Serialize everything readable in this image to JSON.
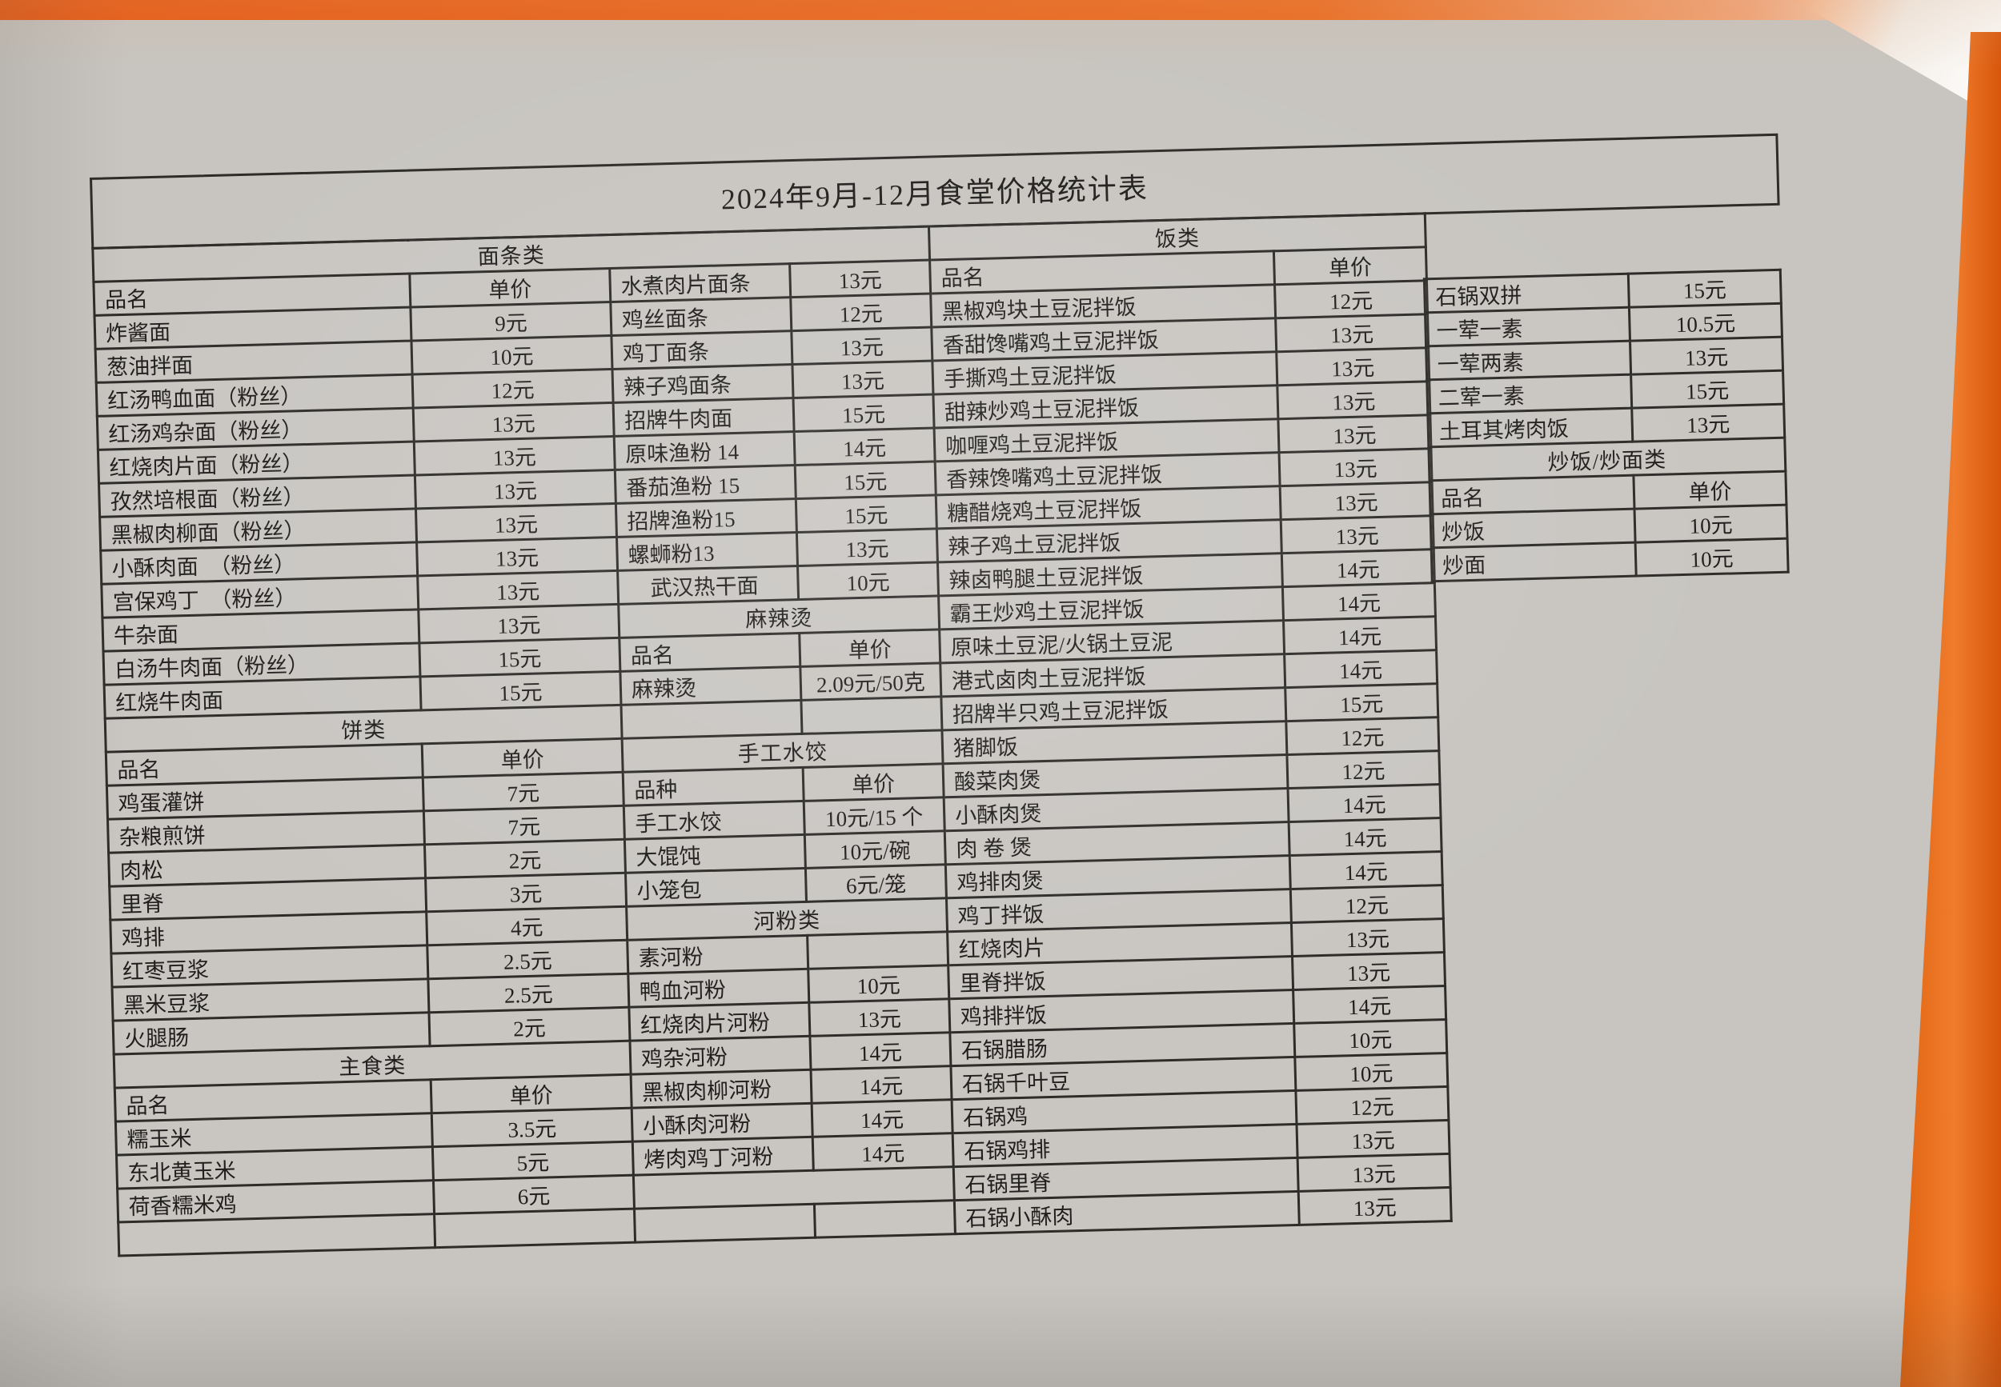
{
  "title": "2024年9月-12月食堂价格统计表",
  "palette": {
    "paper": "#c8c5c0",
    "line": "#2e2c29",
    "ink": "#211f1d",
    "accent_orange": "#e8560e"
  },
  "main_table": {
    "rows": [
      {
        "cells": [
          {
            "text": "面条类",
            "kind": "header",
            "span": 4
          },
          {
            "text": "饭类",
            "kind": "header",
            "span": 2
          }
        ]
      },
      {
        "cells": [
          {
            "text": "品名",
            "kind": "colname"
          },
          {
            "text": "单价",
            "kind": "colprice"
          },
          {
            "text": "水煮肉片面条",
            "kind": "name"
          },
          {
            "text": "13元",
            "kind": "price"
          },
          {
            "text": "品名",
            "kind": "colname"
          },
          {
            "text": "单价",
            "kind": "colprice"
          }
        ]
      },
      {
        "cells": [
          {
            "text": "炸酱面",
            "kind": "name"
          },
          {
            "text": "9元",
            "kind": "price"
          },
          {
            "text": "鸡丝面条",
            "kind": "name"
          },
          {
            "text": "12元",
            "kind": "price"
          },
          {
            "text": "黑椒鸡块土豆泥拌饭",
            "kind": "name"
          },
          {
            "text": "12元",
            "kind": "price"
          }
        ]
      },
      {
        "cells": [
          {
            "text": "葱油拌面",
            "kind": "name"
          },
          {
            "text": "10元",
            "kind": "price"
          },
          {
            "text": "鸡丁面条",
            "kind": "name"
          },
          {
            "text": "13元",
            "kind": "price"
          },
          {
            "text": "香甜馋嘴鸡土豆泥拌饭",
            "kind": "name"
          },
          {
            "text": "13元",
            "kind": "price"
          }
        ]
      },
      {
        "cells": [
          {
            "text": "红汤鸭血面（粉丝）",
            "kind": "name"
          },
          {
            "text": "12元",
            "kind": "price"
          },
          {
            "text": "辣子鸡面条",
            "kind": "name"
          },
          {
            "text": "13元",
            "kind": "price"
          },
          {
            "text": "手撕鸡土豆泥拌饭",
            "kind": "name"
          },
          {
            "text": "13元",
            "kind": "price"
          }
        ]
      },
      {
        "cells": [
          {
            "text": "红汤鸡杂面（粉丝）",
            "kind": "name"
          },
          {
            "text": "13元",
            "kind": "price"
          },
          {
            "text": "招牌牛肉面",
            "kind": "name"
          },
          {
            "text": "15元",
            "kind": "price"
          },
          {
            "text": "甜辣炒鸡土豆泥拌饭",
            "kind": "name"
          },
          {
            "text": "13元",
            "kind": "price"
          }
        ]
      },
      {
        "cells": [
          {
            "text": "红烧肉片面（粉丝）",
            "kind": "name"
          },
          {
            "text": "13元",
            "kind": "price"
          },
          {
            "text": "原味渔粉 14",
            "kind": "name"
          },
          {
            "text": "14元",
            "kind": "price"
          },
          {
            "text": "咖喱鸡土豆泥拌饭",
            "kind": "name"
          },
          {
            "text": "13元",
            "kind": "price"
          }
        ]
      },
      {
        "cells": [
          {
            "text": "孜然培根面（粉丝）",
            "kind": "name"
          },
          {
            "text": "13元",
            "kind": "price"
          },
          {
            "text": "番茄渔粉 15",
            "kind": "name"
          },
          {
            "text": "15元",
            "kind": "price"
          },
          {
            "text": "香辣馋嘴鸡土豆泥拌饭",
            "kind": "name"
          },
          {
            "text": "13元",
            "kind": "price"
          }
        ]
      },
      {
        "cells": [
          {
            "text": "黑椒肉柳面（粉丝）",
            "kind": "name"
          },
          {
            "text": "13元",
            "kind": "price"
          },
          {
            "text": "招牌渔粉15",
            "kind": "name"
          },
          {
            "text": "15元",
            "kind": "price"
          },
          {
            "text": "糖醋烧鸡土豆泥拌饭",
            "kind": "name"
          },
          {
            "text": "13元",
            "kind": "price"
          }
        ]
      },
      {
        "cells": [
          {
            "text": "小酥肉面　（粉丝）",
            "kind": "name"
          },
          {
            "text": "13元",
            "kind": "price"
          },
          {
            "text": "螺蛳粉13",
            "kind": "name"
          },
          {
            "text": "13元",
            "kind": "price"
          },
          {
            "text": "辣子鸡土豆泥拌饭",
            "kind": "name"
          },
          {
            "text": "13元",
            "kind": "price"
          }
        ]
      },
      {
        "cells": [
          {
            "text": "宫保鸡丁　（粉丝）",
            "kind": "name"
          },
          {
            "text": "13元",
            "kind": "price"
          },
          {
            "text": "　武汉热干面",
            "kind": "name"
          },
          {
            "text": "10元",
            "kind": "price"
          },
          {
            "text": "辣卤鸭腿土豆泥拌饭",
            "kind": "name"
          },
          {
            "text": "14元",
            "kind": "price"
          }
        ]
      },
      {
        "cells": [
          {
            "text": "牛杂面",
            "kind": "name"
          },
          {
            "text": "13元",
            "kind": "price"
          },
          {
            "text": "麻辣烫",
            "kind": "header",
            "span": 2
          },
          {
            "text": "霸王炒鸡土豆泥拌饭",
            "kind": "name"
          },
          {
            "text": "14元",
            "kind": "price"
          }
        ]
      },
      {
        "cells": [
          {
            "text": "白汤牛肉面（粉丝）",
            "kind": "name"
          },
          {
            "text": "15元",
            "kind": "price"
          },
          {
            "text": "品名",
            "kind": "colname"
          },
          {
            "text": "单价",
            "kind": "colprice"
          },
          {
            "text": "原味土豆泥/火锅土豆泥",
            "kind": "name"
          },
          {
            "text": "14元",
            "kind": "price"
          }
        ]
      },
      {
        "cells": [
          {
            "text": "红烧牛肉面",
            "kind": "name"
          },
          {
            "text": "15元",
            "kind": "price"
          },
          {
            "text": "麻辣烫",
            "kind": "name"
          },
          {
            "text": "2.09元/50克",
            "kind": "price"
          },
          {
            "text": "港式卤肉土豆泥拌饭",
            "kind": "name"
          },
          {
            "text": "14元",
            "kind": "price"
          }
        ]
      },
      {
        "cells": [
          {
            "text": "饼类",
            "kind": "header",
            "span": 2
          },
          {
            "kind": "empty"
          },
          {
            "kind": "empty"
          },
          {
            "text": "招牌半只鸡土豆泥拌饭",
            "kind": "name"
          },
          {
            "text": "15元",
            "kind": "price"
          }
        ]
      },
      {
        "cells": [
          {
            "text": "品名",
            "kind": "colname"
          },
          {
            "text": "单价",
            "kind": "colprice"
          },
          {
            "text": "手工水饺",
            "kind": "header",
            "span": 2
          },
          {
            "text": "猪脚饭",
            "kind": "name"
          },
          {
            "text": "12元",
            "kind": "price"
          }
        ]
      },
      {
        "cells": [
          {
            "text": "鸡蛋灌饼",
            "kind": "name"
          },
          {
            "text": "7元",
            "kind": "price"
          },
          {
            "text": "品种",
            "kind": "colname"
          },
          {
            "text": "单价",
            "kind": "colprice"
          },
          {
            "text": "酸菜肉煲",
            "kind": "name"
          },
          {
            "text": "12元",
            "kind": "price"
          }
        ]
      },
      {
        "cells": [
          {
            "text": "杂粮煎饼",
            "kind": "name"
          },
          {
            "text": "7元",
            "kind": "price"
          },
          {
            "text": "手工水饺",
            "kind": "name"
          },
          {
            "text": "10元/15 个",
            "kind": "price"
          },
          {
            "text": "小酥肉煲",
            "kind": "name"
          },
          {
            "text": "14元",
            "kind": "price"
          }
        ]
      },
      {
        "cells": [
          {
            "text": "肉松",
            "kind": "name"
          },
          {
            "text": "2元",
            "kind": "price"
          },
          {
            "text": "大馄饨",
            "kind": "name"
          },
          {
            "text": "10元/碗",
            "kind": "price"
          },
          {
            "text": "肉 卷 煲",
            "kind": "name"
          },
          {
            "text": "14元",
            "kind": "price"
          }
        ]
      },
      {
        "cells": [
          {
            "text": "里脊",
            "kind": "name"
          },
          {
            "text": "3元",
            "kind": "price"
          },
          {
            "text": "小笼包",
            "kind": "name"
          },
          {
            "text": "6元/笼",
            "kind": "price"
          },
          {
            "text": "鸡排肉煲",
            "kind": "name"
          },
          {
            "text": "14元",
            "kind": "price"
          }
        ]
      },
      {
        "cells": [
          {
            "text": "鸡排",
            "kind": "name"
          },
          {
            "text": "4元",
            "kind": "price"
          },
          {
            "text": "河粉类",
            "kind": "header",
            "span": 2
          },
          {
            "text": "鸡丁拌饭",
            "kind": "name"
          },
          {
            "text": "12元",
            "kind": "price"
          }
        ]
      },
      {
        "cells": [
          {
            "text": "红枣豆浆",
            "kind": "name"
          },
          {
            "text": "2.5元",
            "kind": "price"
          },
          {
            "text": "素河粉",
            "kind": "name"
          },
          {
            "kind": "empty"
          },
          {
            "text": "红烧肉片",
            "kind": "name"
          },
          {
            "text": "13元",
            "kind": "price"
          }
        ]
      },
      {
        "cells": [
          {
            "text": "黑米豆浆",
            "kind": "name"
          },
          {
            "text": "2.5元",
            "kind": "price"
          },
          {
            "text": "鸭血河粉",
            "kind": "name"
          },
          {
            "text": "10元",
            "kind": "price"
          },
          {
            "text": "里脊拌饭",
            "kind": "name"
          },
          {
            "text": "13元",
            "kind": "price"
          }
        ]
      },
      {
        "cells": [
          {
            "text": "火腿肠",
            "kind": "name"
          },
          {
            "text": "2元",
            "kind": "price"
          },
          {
            "text": "红烧肉片河粉",
            "kind": "name"
          },
          {
            "text": "13元",
            "kind": "price"
          },
          {
            "text": "鸡排拌饭",
            "kind": "name"
          },
          {
            "text": "14元",
            "kind": "price"
          }
        ]
      },
      {
        "cells": [
          {
            "text": "主食类",
            "kind": "header",
            "span": 2
          },
          {
            "text": "鸡杂河粉",
            "kind": "name"
          },
          {
            "text": "14元",
            "kind": "price"
          },
          {
            "text": "石锅腊肠",
            "kind": "name"
          },
          {
            "text": "10元",
            "kind": "price"
          }
        ]
      },
      {
        "cells": [
          {
            "text": "品名",
            "kind": "colname"
          },
          {
            "text": "单价",
            "kind": "colprice"
          },
          {
            "text": "黑椒肉柳河粉",
            "kind": "name"
          },
          {
            "text": "14元",
            "kind": "price"
          },
          {
            "text": "石锅千叶豆",
            "kind": "name"
          },
          {
            "text": "10元",
            "kind": "price"
          }
        ]
      },
      {
        "cells": [
          {
            "text": "糯玉米",
            "kind": "name"
          },
          {
            "text": "3.5元",
            "kind": "price"
          },
          {
            "text": "小酥肉河粉",
            "kind": "name"
          },
          {
            "text": "14元",
            "kind": "price"
          },
          {
            "text": "石锅鸡",
            "kind": "name"
          },
          {
            "text": "12元",
            "kind": "price"
          }
        ]
      },
      {
        "cells": [
          {
            "text": "东北黄玉米",
            "kind": "name"
          },
          {
            "text": "5元",
            "kind": "price"
          },
          {
            "text": "烤肉鸡丁河粉",
            "kind": "name"
          },
          {
            "text": "14元",
            "kind": "price"
          },
          {
            "text": "石锅鸡排",
            "kind": "name"
          },
          {
            "text": "13元",
            "kind": "price"
          }
        ]
      },
      {
        "cells": [
          {
            "text": "荷香糯米鸡",
            "kind": "name"
          },
          {
            "text": "6元",
            "kind": "price"
          },
          {
            "kind": "empty",
            "span": 2
          },
          {
            "text": "石锅里脊",
            "kind": "name"
          },
          {
            "text": "13元",
            "kind": "price"
          }
        ]
      },
      {
        "cells": [
          {
            "kind": "empty"
          },
          {
            "kind": "empty"
          },
          {
            "kind": "empty"
          },
          {
            "kind": "empty"
          },
          {
            "text": "石锅小酥肉",
            "kind": "name"
          },
          {
            "text": "13元",
            "kind": "price"
          }
        ]
      }
    ]
  },
  "annex_table": {
    "rows": [
      {
        "cells": [
          {
            "text": "石锅双拼",
            "kind": "name"
          },
          {
            "text": "15元",
            "kind": "price"
          }
        ]
      },
      {
        "cells": [
          {
            "text": "一荤一素",
            "kind": "name"
          },
          {
            "text": "10.5元",
            "kind": "price"
          }
        ]
      },
      {
        "cells": [
          {
            "text": "一荤两素",
            "kind": "name"
          },
          {
            "text": "13元",
            "kind": "price"
          }
        ]
      },
      {
        "cells": [
          {
            "text": "二荤一素",
            "kind": "name"
          },
          {
            "text": "15元",
            "kind": "price"
          }
        ]
      },
      {
        "cells": [
          {
            "text": "土耳其烤肉饭",
            "kind": "name"
          },
          {
            "text": "13元",
            "kind": "price"
          }
        ]
      },
      {
        "cells": [
          {
            "text": "炒饭/炒面类",
            "kind": "header",
            "span": 2
          }
        ]
      },
      {
        "cells": [
          {
            "text": "品名",
            "kind": "colname"
          },
          {
            "text": "单价",
            "kind": "colprice"
          }
        ]
      },
      {
        "cells": [
          {
            "text": "炒饭",
            "kind": "name"
          },
          {
            "text": "10元",
            "kind": "price"
          }
        ]
      },
      {
        "cells": [
          {
            "text": "炒面",
            "kind": "name"
          },
          {
            "text": "10元",
            "kind": "price"
          }
        ]
      }
    ]
  }
}
